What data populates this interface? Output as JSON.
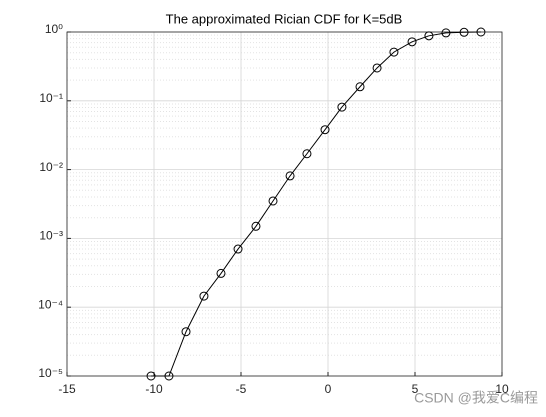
{
  "chart_data": {
    "type": "line",
    "title": "The approximated Rician CDF for K=5dB",
    "x": [
      -10.17,
      -9.14,
      -8.16,
      -7.13,
      -6.15,
      -5.17,
      -4.14,
      -3.16,
      -2.18,
      -1.21,
      -0.17,
      0.8,
      1.84,
      2.82,
      3.79,
      4.83,
      5.8,
      6.78,
      7.82,
      8.79
    ],
    "series": [
      {
        "color": "#000000",
        "marker": "circle",
        "values": [
          1e-05,
          1e-05,
          4.4e-05,
          0.000145,
          0.00031,
          0.0007,
          0.0015,
          0.0035,
          0.0081,
          0.017,
          0.038,
          0.081,
          0.16,
          0.3,
          0.51,
          0.72,
          0.88,
          0.97,
          0.99,
          1.0
        ]
      }
    ],
    "xlim": [
      -15,
      10
    ],
    "xticks": [
      -15,
      -10,
      -5,
      0,
      5,
      10
    ],
    "ylim": [
      1e-05,
      1
    ],
    "log_y": true,
    "yticks": [
      {
        "value": 1e-05,
        "label": "10⁻⁵"
      },
      {
        "value": 0.0001,
        "label": "10⁻⁴"
      },
      {
        "value": 0.001,
        "label": "10⁻³"
      },
      {
        "value": 0.01,
        "label": "10⁻²"
      },
      {
        "value": 0.1,
        "label": "10⁻¹"
      },
      {
        "value": 1,
        "label": "10⁰"
      }
    ],
    "grid": true,
    "minor_grid": true
  },
  "watermark": "CSDN @我爱C编程"
}
